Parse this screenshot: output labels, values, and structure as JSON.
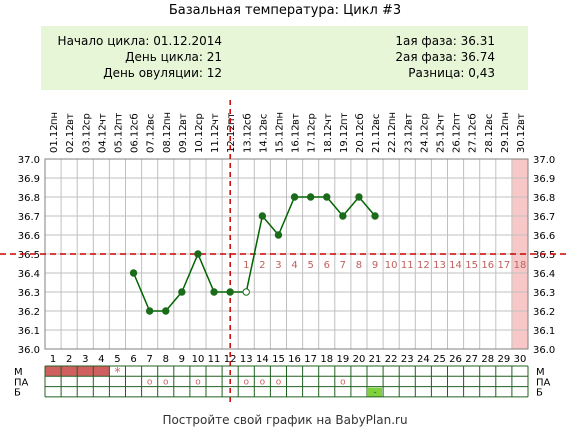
{
  "header": {
    "title": "Базальная температура: Цикл #3",
    "cycle_start": "Начало цикла: 01.12.2014",
    "cycle_day": "День цикла: 21",
    "ovulation_day": "День овуляции: 12",
    "phase1": "1ая фаза: 36.31",
    "phase2": "2ая фаза: 36.74",
    "difference": "Разница: 0,43"
  },
  "footer": {
    "text": "Постройте свой график на BabyPlan.ru"
  },
  "chart_data": {
    "type": "line",
    "title": "Базальная температура: Цикл #3",
    "weekdays": [
      "пн",
      "вт",
      "ср",
      "чт",
      "пт",
      "сб",
      "вс",
      "пн",
      "вт",
      "ср",
      "чт",
      "пт",
      "сб",
      "вс",
      "пн",
      "вт",
      "ср",
      "чт",
      "пт",
      "сб",
      "вс",
      "пн",
      "вт",
      "ср",
      "чт",
      "пт",
      "сб",
      "вс",
      "пн",
      "вт"
    ],
    "dates": [
      "01.12",
      "02.12",
      "03.12",
      "04.12",
      "05.12",
      "06.12",
      "07.12",
      "08.12",
      "09.12",
      "10.12",
      "11.12",
      "12.12",
      "13.12",
      "14.12",
      "15.12",
      "16.12",
      "17.12",
      "18.12",
      "19.12",
      "20.12",
      "21.12",
      "22.12",
      "23.12",
      "24.12",
      "25.12",
      "26.12",
      "27.12",
      "28.12",
      "29.12",
      "30.12"
    ],
    "days": [
      1,
      2,
      3,
      4,
      5,
      6,
      7,
      8,
      9,
      10,
      11,
      12,
      13,
      14,
      15,
      16,
      17,
      18,
      19,
      20,
      21,
      22,
      23,
      24,
      25,
      26,
      27,
      28,
      29,
      30
    ],
    "y_ticks": [
      "37.0",
      "36.9",
      "36.8",
      "36.7",
      "36.6",
      "36.5",
      "36.4",
      "36.3",
      "36.2",
      "36.1",
      "36.0"
    ],
    "ylim": [
      36.0,
      37.0
    ],
    "series": [
      {
        "values": [
          null,
          null,
          null,
          null,
          null,
          36.4,
          36.2,
          36.2,
          36.3,
          36.5,
          36.3,
          36.3,
          36.3,
          36.7,
          36.6,
          36.8,
          36.8,
          36.8,
          36.7,
          36.8,
          36.7,
          null,
          null,
          null,
          null,
          null,
          null,
          null,
          null,
          null
        ]
      }
    ],
    "open_points_days": [
      13
    ],
    "coverline": 36.5,
    "ovulation_day": 12,
    "phase2_labels": [
      "1",
      "2",
      "3",
      "4",
      "5",
      "6",
      "7",
      "8",
      "9",
      "10",
      "11",
      "12",
      "13",
      "14",
      "15",
      "16",
      "17",
      "18"
    ],
    "phase2_start_day": 13,
    "highlight_day": 30,
    "row_labels": [
      "М",
      "ПА",
      "Б"
    ],
    "menstruation_days": [
      1,
      2,
      3,
      4
    ],
    "menstruation_marks": [
      {
        "day": 5,
        "symbol": "*"
      }
    ],
    "intercourse_days": [
      7,
      8,
      10,
      13,
      14,
      15,
      19
    ],
    "intercourse_symbol": "o",
    "test_marks": [
      {
        "day": 21,
        "symbol": "-"
      }
    ],
    "colors": {
      "line": "#006400",
      "marker": "#1a6b1a",
      "coverline": "#cc0000",
      "ovulation_line": "#cc0000",
      "grid": "#c0c0c0",
      "phase_numbers": "#c06060",
      "highlight": "#f8c8c8",
      "menstruation": "#d06060",
      "test": "#80d040",
      "info_bg": "#e8f6d8"
    }
  }
}
